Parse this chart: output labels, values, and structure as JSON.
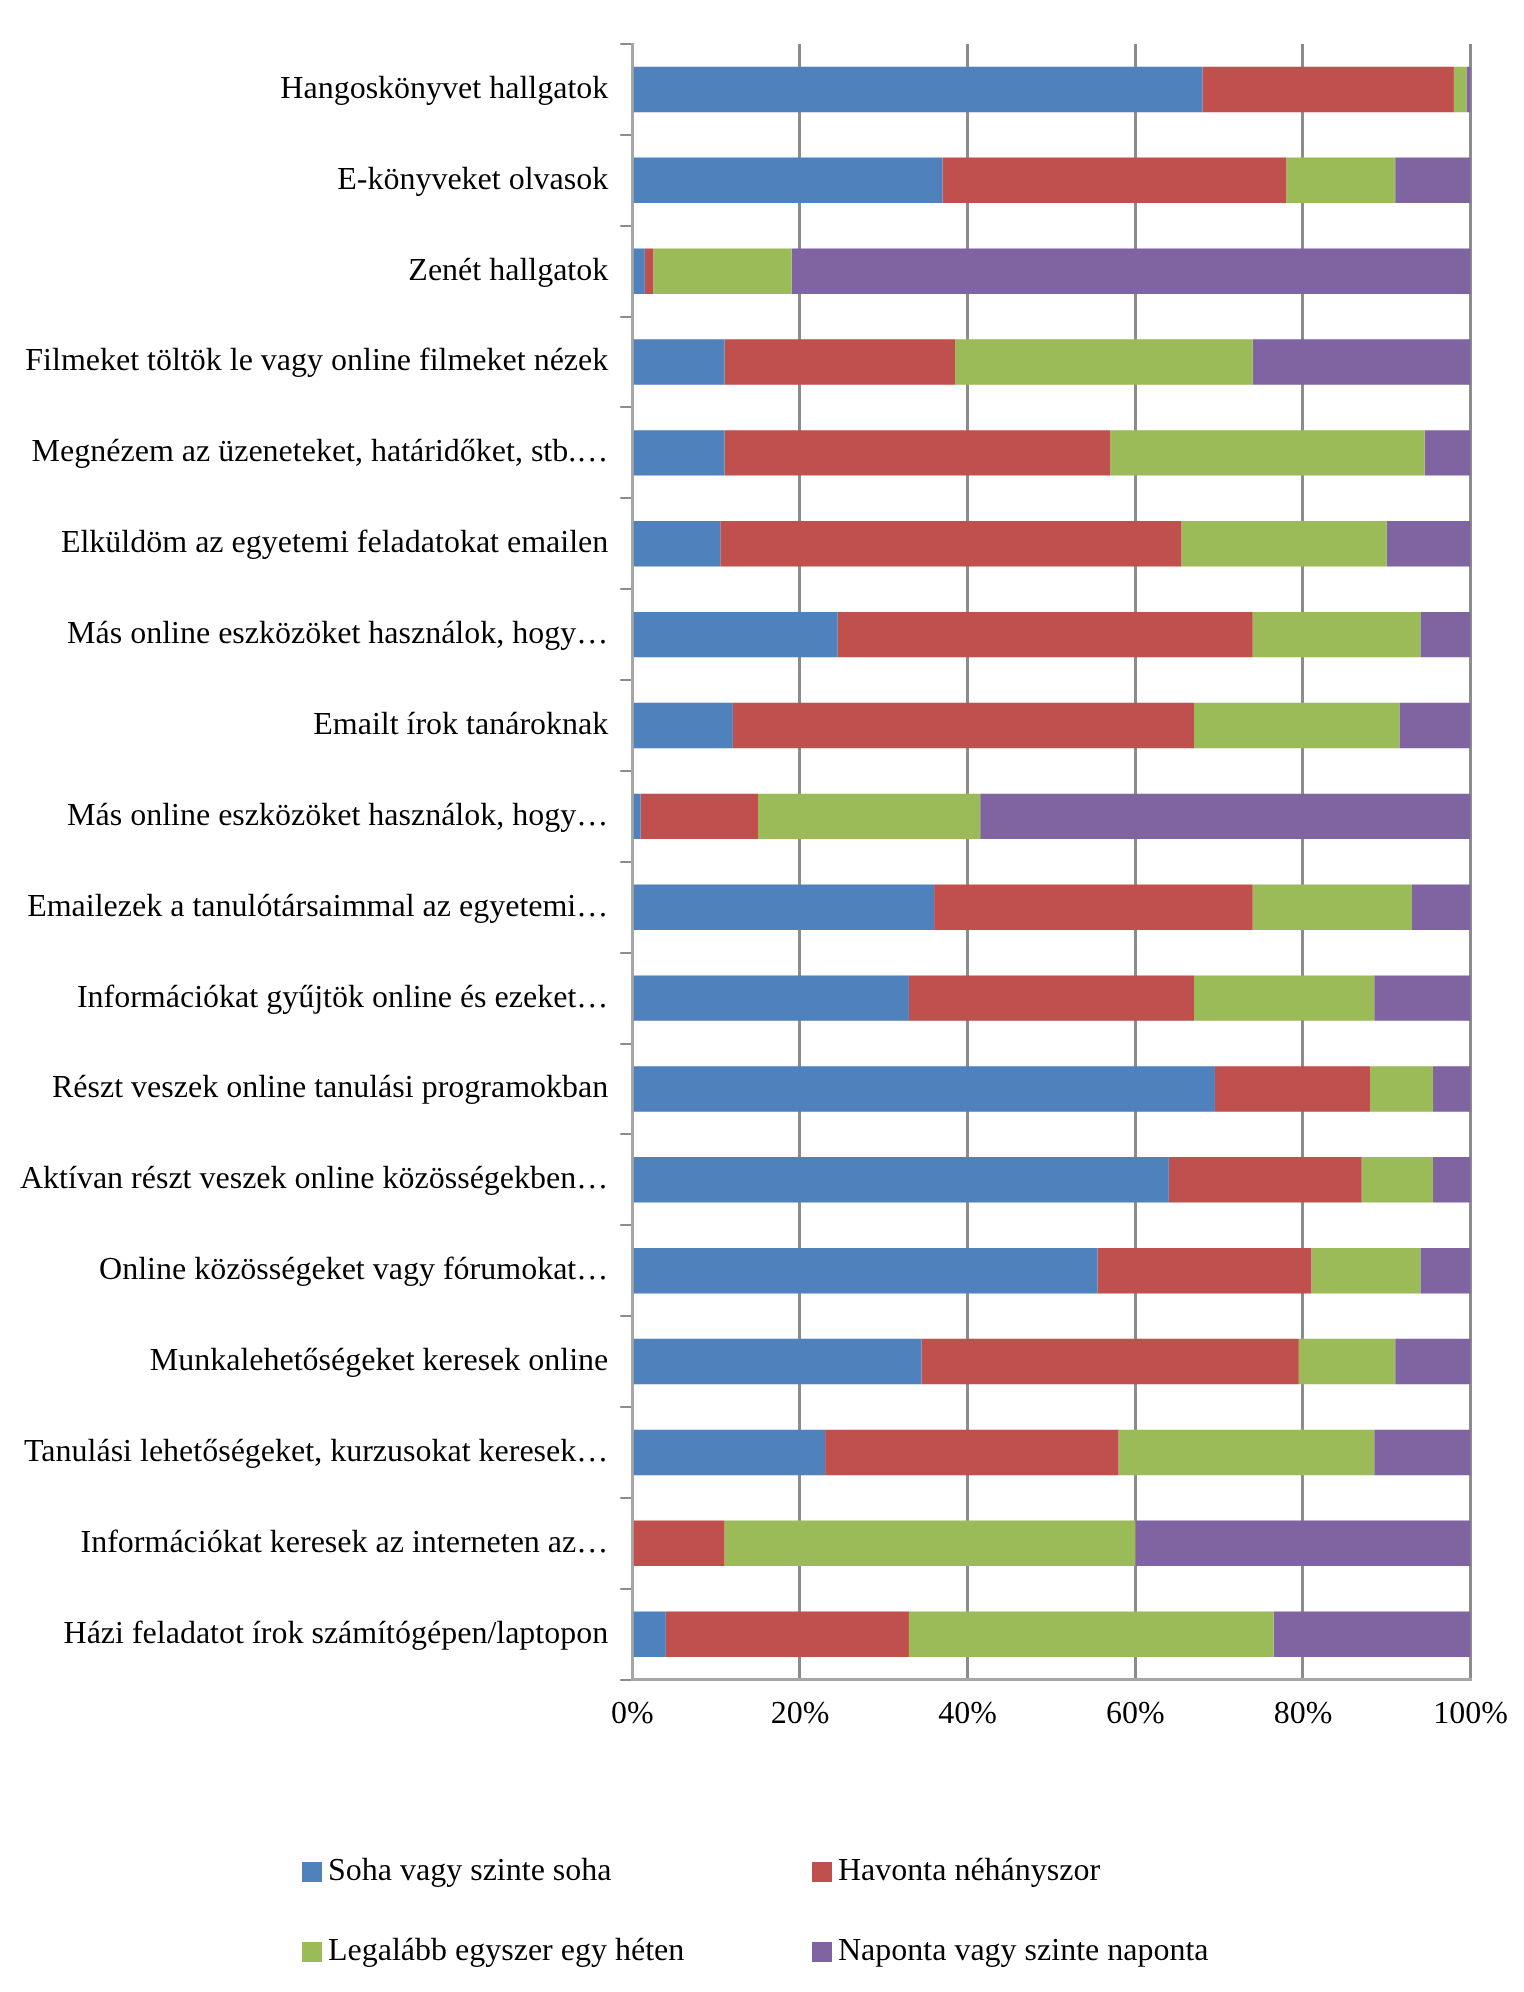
{
  "chart_data": {
    "type": "bar",
    "orientation": "horizontal",
    "stacked": true,
    "categories": [
      "Hangoskönyvet hallgatok",
      "E-könyveket olvasok",
      "Zenét hallgatok",
      "Filmeket töltök le vagy online filmeket nézek",
      "Megnézem az üzeneteket, határidőket, stb.…",
      "Elküldöm az egyetemi feladatokat emailen",
      "Más online eszközöket használok, hogy…",
      "Emailt írok tanároknak",
      "Más online eszközöket használok, hogy…",
      "Emailezek a tanulótársaimmal az egyetemi…",
      "Információkat gyűjtök online és ezeket…",
      "Részt veszek online tanulási programokban",
      "Aktívan részt veszek online közösségekben…",
      "Online közösségeket vagy fórumokat…",
      "Munkalehetőségeket keresek online",
      "Tanulási lehetőségeket, kurzusokat keresek…",
      "Információkat keresek az interneten az…",
      "Házi feladatot írok számítógépen/laptopon"
    ],
    "series": [
      {
        "name": "Soha vagy szinte soha",
        "color": "#4f81bd",
        "values": [
          68,
          37,
          1.5,
          11,
          11,
          10.5,
          24.5,
          12,
          1,
          36,
          33,
          69.5,
          64,
          55.5,
          34.5,
          23,
          0,
          4
        ]
      },
      {
        "name": "Havonta néhányszor",
        "color": "#c0504d",
        "values": [
          30,
          41,
          1,
          27.5,
          46,
          55,
          49.5,
          55,
          14,
          38,
          34,
          18.5,
          23,
          25.5,
          45,
          35,
          11,
          29
        ]
      },
      {
        "name": "Legalább egyszer egy héten",
        "color": "#9bbb59",
        "values": [
          1.5,
          13,
          16.5,
          35.5,
          37.5,
          24.5,
          20,
          24.5,
          26.5,
          19,
          21.5,
          7.5,
          8.5,
          13,
          11.5,
          30.5,
          49,
          43.5
        ]
      },
      {
        "name": "Naponta vagy szinte naponta",
        "color": "#8064a2",
        "values": [
          0.5,
          9,
          81,
          26,
          5.5,
          10,
          6,
          8.5,
          58.5,
          7,
          11.5,
          4.5,
          4.5,
          6,
          9,
          11.5,
          40,
          23.5
        ]
      }
    ],
    "xlim": [
      0,
      100
    ],
    "xticks": [
      {
        "value": 0,
        "label": "0%"
      },
      {
        "value": 20,
        "label": "20%"
      },
      {
        "value": 40,
        "label": "40%"
      },
      {
        "value": 60,
        "label": "60%"
      },
      {
        "value": 80,
        "label": "80%"
      },
      {
        "value": 100,
        "label": "100%"
      }
    ],
    "grid": "x",
    "legend": "bottom"
  }
}
